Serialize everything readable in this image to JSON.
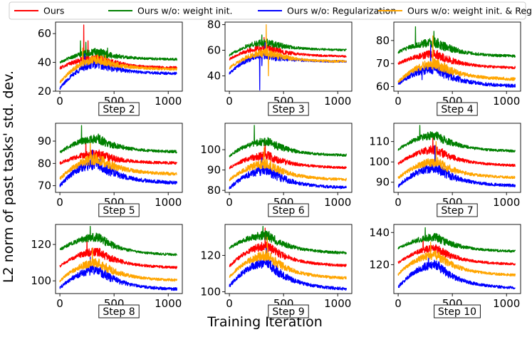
{
  "figure": {
    "xlabel": "Training Iteration",
    "ylabel": "L2 norm of past tasks' std. dev."
  },
  "legend": [
    {
      "key": "ours",
      "label": "Ours",
      "color": "#ff0000"
    },
    {
      "key": "no_init",
      "label": "Ours w/o: weight init.",
      "color": "#008000"
    },
    {
      "key": "no_reg",
      "label": "Ours w/o: Regularization",
      "color": "#0000ff"
    },
    {
      "key": "no_both",
      "label": "Ours w/o: weight init. & Reg.",
      "color": "#ffa500"
    }
  ],
  "chart_data": [
    {
      "type": "line",
      "title": "Step 2",
      "xlim": [
        -40,
        1130
      ],
      "xticks": [
        0,
        500,
        1000
      ],
      "ylim": [
        20,
        68
      ],
      "yticks": [
        20,
        40,
        60
      ],
      "series": [
        {
          "name": "Ours",
          "start": 36,
          "peak": 43,
          "end": 36,
          "noise": 1.5,
          "spikes": [
            [
              220,
              66
            ],
            [
              260,
              55
            ]
          ]
        },
        {
          "name": "Ours w/o: weight init.",
          "start": 40,
          "peak": 47,
          "end": 42,
          "noise": 1.3,
          "spikes": [
            [
              190,
              55
            ],
            [
              240,
              54
            ],
            [
              440,
              50
            ]
          ]
        },
        {
          "name": "Ours w/o: Regularization",
          "start": 22,
          "peak": 39,
          "end": 32,
          "noise": 1.5,
          "spikes": [
            [
              230,
              46
            ]
          ]
        },
        {
          "name": "Ours w/o: weight init. & Reg.",
          "start": 26,
          "peak": 42,
          "end": 35,
          "noise": 1.5,
          "spikes": [
            [
              210,
              50
            ],
            [
              420,
              45
            ]
          ]
        }
      ]
    },
    {
      "type": "line",
      "title": "Step 3",
      "xlim": [
        -40,
        1130
      ],
      "xticks": [
        0,
        500,
        1000
      ],
      "ylim": [
        28,
        82
      ],
      "yticks": [
        40,
        60,
        80
      ],
      "series": [
        {
          "name": "Ours",
          "start": 53,
          "peak": 62,
          "end": 55,
          "noise": 1.3,
          "spikes": [
            [
              320,
              70
            ]
          ]
        },
        {
          "name": "Ours w/o: weight init.",
          "start": 56,
          "peak": 66,
          "end": 60,
          "noise": 1.3,
          "spikes": [
            [
              300,
              72
            ]
          ]
        },
        {
          "name": "Ours w/o: Regularization",
          "start": 42,
          "peak": 56,
          "end": 51,
          "noise": 1.5,
          "spikes": [
            [
              280,
              29
            ],
            [
              300,
              48
            ],
            [
              330,
              66
            ]
          ]
        },
        {
          "name": "Ours w/o: weight init. & Reg.",
          "start": 46,
          "peak": 58,
          "end": 51,
          "noise": 1.5,
          "spikes": [
            [
              340,
              80
            ],
            [
              360,
              40
            ]
          ]
        }
      ]
    },
    {
      "type": "line",
      "title": "Step 4",
      "xlim": [
        -40,
        1130
      ],
      "xticks": [
        0,
        500,
        1000
      ],
      "ylim": [
        58,
        88
      ],
      "yticks": [
        60,
        70,
        80
      ],
      "series": [
        {
          "name": "Ours",
          "start": 70,
          "peak": 74,
          "end": 68,
          "noise": 0.9,
          "spikes": [
            [
              300,
              80
            ]
          ]
        },
        {
          "name": "Ours w/o: weight init.",
          "start": 75,
          "peak": 79,
          "end": 73,
          "noise": 1.0,
          "spikes": [
            [
              160,
              86
            ],
            [
              330,
              84
            ]
          ]
        },
        {
          "name": "Ours w/o: Regularization",
          "start": 61,
          "peak": 68,
          "end": 60,
          "noise": 1.2,
          "spikes": [
            [
              220,
              63
            ],
            [
              300,
              78
            ]
          ]
        },
        {
          "name": "Ours w/o: weight init. & Reg.",
          "start": 62,
          "peak": 70,
          "end": 63,
          "noise": 1.1,
          "spikes": [
            [
              320,
              82
            ]
          ]
        }
      ]
    },
    {
      "type": "line",
      "title": "Step 5",
      "xlim": [
        -40,
        1130
      ],
      "xticks": [
        0,
        500,
        1000
      ],
      "ylim": [
        67,
        98
      ],
      "yticks": [
        70,
        80,
        90
      ],
      "series": [
        {
          "name": "Ours",
          "start": 80,
          "peak": 84,
          "end": 80,
          "noise": 1.0,
          "spikes": [
            [
              240,
              90
            ]
          ]
        },
        {
          "name": "Ours w/o: weight init.",
          "start": 85,
          "peak": 91,
          "end": 85,
          "noise": 1.0,
          "spikes": [
            [
              200,
              97
            ]
          ]
        },
        {
          "name": "Ours w/o: Regularization",
          "start": 70,
          "peak": 80,
          "end": 71,
          "noise": 1.3,
          "spikes": [
            [
              300,
              86
            ]
          ]
        },
        {
          "name": "Ours w/o: weight init. & Reg.",
          "start": 73,
          "peak": 82,
          "end": 75,
          "noise": 1.2,
          "spikes": [
            [
              280,
              89
            ]
          ]
        }
      ]
    },
    {
      "type": "line",
      "title": "Step 6",
      "xlim": [
        -40,
        1130
      ],
      "xticks": [
        0,
        500,
        1000
      ],
      "ylim": [
        79,
        113
      ],
      "yticks": [
        80,
        90,
        100
      ],
      "series": [
        {
          "name": "Ours",
          "start": 91,
          "peak": 97,
          "end": 91,
          "noise": 1.0,
          "spikes": [
            [
              330,
              104
            ]
          ]
        },
        {
          "name": "Ours w/o: weight init.",
          "start": 97,
          "peak": 104,
          "end": 97,
          "noise": 1.0,
          "spikes": [
            [
              230,
              112
            ]
          ]
        },
        {
          "name": "Ours w/o: Regularization",
          "start": 81,
          "peak": 90,
          "end": 81,
          "noise": 1.2,
          "spikes": [
            [
              300,
              96
            ]
          ]
        },
        {
          "name": "Ours w/o: weight init. & Reg.",
          "start": 85,
          "peak": 93,
          "end": 85,
          "noise": 1.1,
          "spikes": [
            [
              320,
              101
            ]
          ]
        }
      ]
    },
    {
      "type": "line",
      "title": "Step 7",
      "xlim": [
        -40,
        1130
      ],
      "xticks": [
        0,
        500,
        1000
      ],
      "ylim": [
        85,
        119
      ],
      "yticks": [
        90,
        100,
        110
      ],
      "series": [
        {
          "name": "Ours",
          "start": 99,
          "peak": 106,
          "end": 98,
          "noise": 1.0,
          "spikes": [
            [
              320,
              112
            ]
          ]
        },
        {
          "name": "Ours w/o: weight init.",
          "start": 106,
          "peak": 113,
          "end": 105,
          "noise": 1.0,
          "spikes": [
            [
              200,
              118
            ]
          ]
        },
        {
          "name": "Ours w/o: Regularization",
          "start": 88,
          "peak": 97,
          "end": 88,
          "noise": 1.2,
          "spikes": [
            [
              340,
              108
            ]
          ]
        },
        {
          "name": "Ours w/o: weight init. & Reg.",
          "start": 92,
          "peak": 100,
          "end": 92,
          "noise": 1.1,
          "spikes": [
            [
              350,
              110
            ]
          ]
        }
      ]
    },
    {
      "type": "line",
      "title": "Step 8",
      "xlim": [
        -40,
        1130
      ],
      "xticks": [
        0,
        500,
        1000
      ],
      "ylim": [
        93,
        131
      ],
      "yticks": [
        100,
        120
      ],
      "series": [
        {
          "name": "Ours",
          "start": 108,
          "peak": 116,
          "end": 107,
          "noise": 1.1,
          "spikes": [
            [
              250,
              124
            ]
          ]
        },
        {
          "name": "Ours w/o: weight init.",
          "start": 117,
          "peak": 124,
          "end": 114,
          "noise": 1.1,
          "spikes": [
            [
              280,
              130
            ]
          ]
        },
        {
          "name": "Ours w/o: Regularization",
          "start": 96,
          "peak": 106,
          "end": 95,
          "noise": 1.3,
          "spikes": [
            [
              280,
              113
            ]
          ]
        },
        {
          "name": "Ours w/o: weight init. & Reg.",
          "start": 100,
          "peak": 110,
          "end": 100,
          "noise": 1.2,
          "spikes": [
            [
              300,
              118
            ]
          ]
        }
      ]
    },
    {
      "type": "line",
      "title": "Step 9",
      "xlim": [
        -40,
        1130
      ],
      "xticks": [
        0,
        500,
        1000
      ],
      "ylim": [
        99,
        137
      ],
      "yticks": [
        100,
        120
      ],
      "series": [
        {
          "name": "Ours",
          "start": 114,
          "peak": 125,
          "end": 114,
          "noise": 1.2,
          "spikes": [
            [
              330,
              135
            ]
          ]
        },
        {
          "name": "Ours w/o: weight init.",
          "start": 124,
          "peak": 131,
          "end": 121,
          "noise": 1.2,
          "spikes": [
            [
              310,
              136
            ]
          ]
        },
        {
          "name": "Ours w/o: Regularization",
          "start": 103,
          "peak": 116,
          "end": 101,
          "noise": 1.4,
          "spikes": [
            [
              340,
              124
            ]
          ]
        },
        {
          "name": "Ours w/o: weight init. & Reg.",
          "start": 108,
          "peak": 120,
          "end": 107,
          "noise": 1.3,
          "spikes": [
            [
              350,
              130
            ]
          ]
        }
      ]
    },
    {
      "type": "line",
      "title": "Step 10",
      "xlim": [
        -40,
        1130
      ],
      "xticks": [
        0,
        500,
        1000
      ],
      "ylim": [
        102,
        145
      ],
      "yticks": [
        120,
        140
      ],
      "series": [
        {
          "name": "Ours",
          "start": 121,
          "peak": 130,
          "end": 120,
          "noise": 1.2,
          "spikes": [
            [
              230,
              137
            ]
          ]
        },
        {
          "name": "Ours w/o: weight init.",
          "start": 130,
          "peak": 137,
          "end": 128,
          "noise": 1.2,
          "spikes": [
            [
              250,
              143
            ]
          ]
        },
        {
          "name": "Ours w/o: Regularization",
          "start": 106,
          "peak": 120,
          "end": 105,
          "noise": 1.4,
          "spikes": [
            [
              280,
              126
            ]
          ]
        },
        {
          "name": "Ours w/o: weight init. & Reg.",
          "start": 114,
          "peak": 126,
          "end": 113,
          "noise": 1.3,
          "spikes": [
            [
              300,
              134
            ]
          ]
        }
      ]
    }
  ]
}
